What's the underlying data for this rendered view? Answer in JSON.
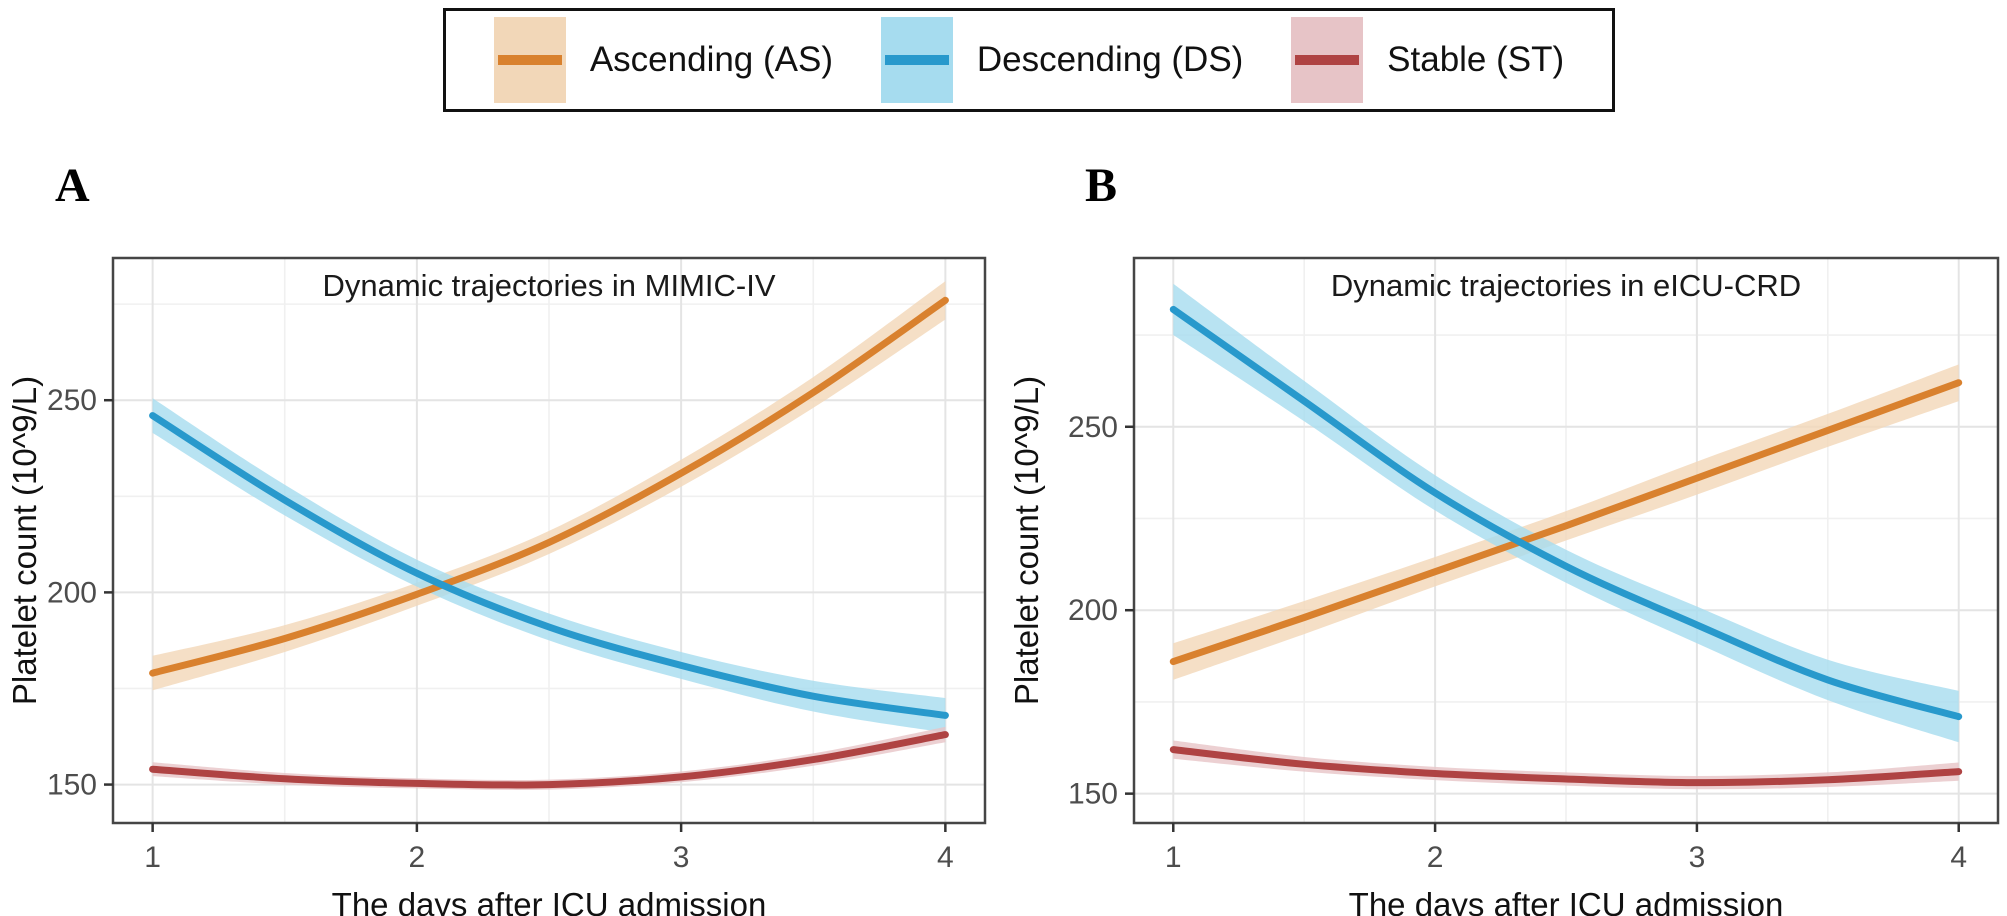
{
  "figure": {
    "panels": [
      {
        "letter": "A"
      },
      {
        "letter": "B"
      }
    ]
  },
  "legend": {
    "items": [
      {
        "label": "Ascending (AS)",
        "line_color": "#D9812E",
        "band_color": "#F2D7B8"
      },
      {
        "label": "Descending (DS)",
        "line_color": "#2899CC",
        "band_color": "#A6DCEF"
      },
      {
        "label": "Stable (ST)",
        "line_color": "#AF4343",
        "band_color": "#E7C4C7"
      }
    ]
  },
  "chart_data": [
    {
      "type": "line",
      "panel": "A",
      "title": "Dynamic trajectories in MIMIC-IV",
      "xlabel": "The days after ICU admission",
      "ylabel": "Platelet count (10^9/L)",
      "x_ticks": [
        1,
        2,
        3,
        4
      ],
      "y_ticks": [
        150,
        200,
        250
      ],
      "xlim": [
        0.85,
        4.15
      ],
      "ylim": [
        140,
        287
      ],
      "grid": true,
      "legend_position": "top-shared",
      "series": [
        {
          "name": "Ascending (AS)",
          "line_color": "#D9812E",
          "band_color": "#F2D7B8",
          "x": [
            1,
            1.5,
            2,
            2.5,
            3,
            3.5,
            4
          ],
          "y": [
            179,
            188,
            199.5,
            213,
            231,
            252,
            276
          ],
          "ci": [
            4.5,
            3.5,
            3,
            3,
            3.5,
            4,
            5
          ]
        },
        {
          "name": "Descending (DS)",
          "line_color": "#2899CC",
          "band_color": "#A6DCEF",
          "x": [
            1,
            1.5,
            2,
            2.5,
            3,
            3.5,
            4
          ],
          "y": [
            246,
            224,
            205,
            191,
            181,
            173,
            168
          ],
          "ci": [
            4.5,
            4,
            3.5,
            3.5,
            3.5,
            4,
            4.5
          ]
        },
        {
          "name": "Stable (ST)",
          "line_color": "#AF4343",
          "band_color": "#E7C4C7",
          "x": [
            1,
            1.5,
            2,
            2.5,
            3,
            3.5,
            4
          ],
          "y": [
            154,
            151.5,
            150.3,
            150,
            152,
            156.5,
            163
          ],
          "ci": [
            1.8,
            1.5,
            1.3,
            1.3,
            1.4,
            1.6,
            2
          ]
        }
      ]
    },
    {
      "type": "line",
      "panel": "B",
      "title": "Dynamic trajectories in eICU-CRD",
      "xlabel": "The days after ICU admission",
      "ylabel": "Platelet count (10^9/L)",
      "x_ticks": [
        1,
        2,
        3,
        4
      ],
      "y_ticks": [
        150,
        200,
        250
      ],
      "xlim": [
        0.85,
        4.15
      ],
      "ylim": [
        142,
        296
      ],
      "grid": true,
      "legend_position": "top-shared",
      "series": [
        {
          "name": "Ascending (AS)",
          "line_color": "#D9812E",
          "band_color": "#F2D7B8",
          "x": [
            1,
            1.5,
            2,
            2.5,
            3,
            3.5,
            4
          ],
          "y": [
            186,
            198,
            210.5,
            223,
            236,
            249,
            262
          ],
          "ci": [
            5,
            4.5,
            4,
            4,
            4.5,
            4.5,
            5
          ]
        },
        {
          "name": "Descending (DS)",
          "line_color": "#2899CC",
          "band_color": "#A6DCEF",
          "x": [
            1,
            1.5,
            2,
            2.5,
            3,
            3.5,
            4
          ],
          "y": [
            282,
            257,
            232,
            212,
            196,
            181,
            171
          ],
          "ci": [
            7,
            5.5,
            4.8,
            4.5,
            5,
            5.5,
            7
          ]
        },
        {
          "name": "Stable (ST)",
          "line_color": "#AF4343",
          "band_color": "#E7C4C7",
          "x": [
            1,
            1.5,
            2,
            2.5,
            3,
            3.5,
            4
          ],
          "y": [
            162,
            158,
            155.5,
            154,
            153,
            153.8,
            156
          ],
          "ci": [
            2.5,
            2,
            1.8,
            1.8,
            1.8,
            2,
            2.5
          ]
        }
      ]
    }
  ]
}
